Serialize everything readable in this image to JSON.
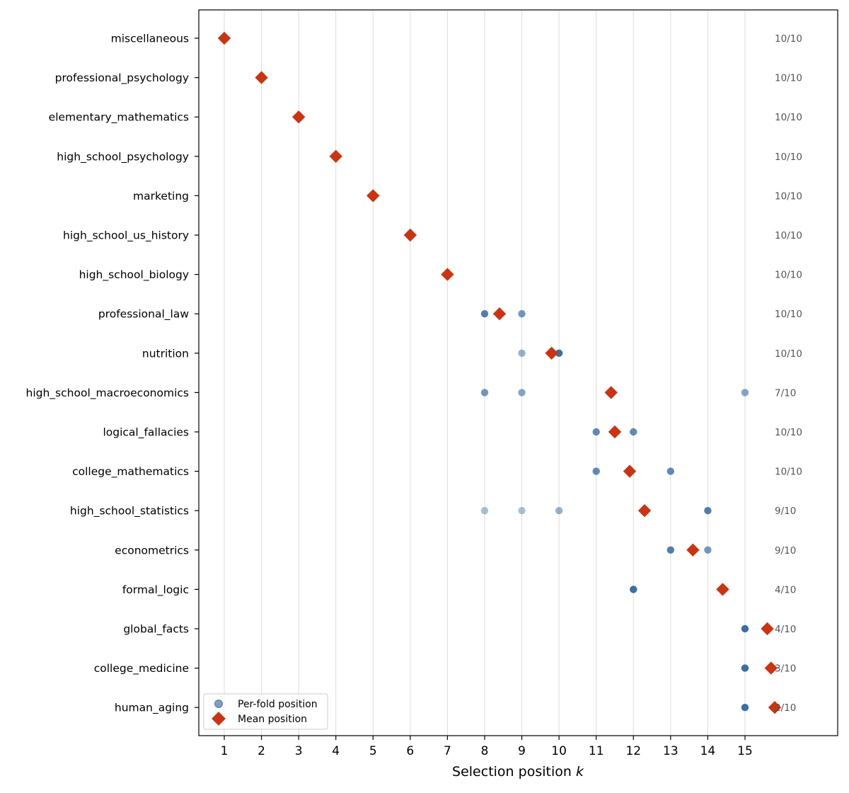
{
  "chart_data": {
    "type": "scatter",
    "xlabel": "Selection position",
    "xlabel_italic": "k",
    "xlim": [
      0.3,
      17.4
    ],
    "x_ticks": [
      1,
      2,
      3,
      4,
      5,
      6,
      7,
      8,
      9,
      10,
      11,
      12,
      13,
      14,
      15
    ],
    "grid": "vertical",
    "legend": {
      "placement": "bottom-left",
      "entries": [
        "Per-fold position",
        "Mean position"
      ]
    },
    "colors": {
      "per_fold": "#3a6ea5",
      "mean": "#cc3311",
      "grid": "#dddddd",
      "fraction_text": "#555555"
    },
    "categories": [
      "miscellaneous",
      "professional_psychology",
      "elementary_mathematics",
      "high_school_psychology",
      "marketing",
      "high_school_us_history",
      "high_school_biology",
      "professional_law",
      "nutrition",
      "high_school_macroeconomics",
      "logical_fallacies",
      "college_mathematics",
      "high_school_statistics",
      "econometrics",
      "formal_logic",
      "global_facts",
      "college_medicine",
      "human_aging"
    ],
    "fractions": [
      "10/10",
      "10/10",
      "10/10",
      "10/10",
      "10/10",
      "10/10",
      "10/10",
      "10/10",
      "10/10",
      "7/10",
      "10/10",
      "10/10",
      "9/10",
      "9/10",
      "4/10",
      "4/10",
      "3/10",
      "2/10"
    ],
    "mean_position": [
      1,
      2,
      3,
      4,
      5,
      6,
      7,
      8.4,
      9.8,
      11.4,
      11.5,
      11.9,
      12.3,
      13.6,
      14.4,
      15.6,
      15.7,
      15.8
    ],
    "per_fold_positions": [
      [
        {
          "x": 1,
          "share": 1.0
        }
      ],
      [
        {
          "x": 2,
          "share": 1.0
        }
      ],
      [
        {
          "x": 3,
          "share": 1.0
        }
      ],
      [
        {
          "x": 4,
          "share": 1.0
        }
      ],
      [
        {
          "x": 5,
          "share": 1.0
        }
      ],
      [
        {
          "x": 6,
          "share": 1.0
        }
      ],
      [
        {
          "x": 7,
          "share": 1.0
        }
      ],
      [
        {
          "x": 8,
          "share": 0.6
        },
        {
          "x": 9,
          "share": 0.4
        }
      ],
      [
        {
          "x": 9,
          "share": 0.2
        },
        {
          "x": 10,
          "share": 0.8
        }
      ],
      [
        {
          "x": 8,
          "share": 0.4
        },
        {
          "x": 9,
          "share": 0.3
        },
        {
          "x": 15,
          "share": 0.3
        }
      ],
      [
        {
          "x": 11,
          "share": 0.5
        },
        {
          "x": 12,
          "share": 0.5
        }
      ],
      [
        {
          "x": 11,
          "share": 0.5
        },
        {
          "x": 13,
          "share": 0.5
        }
      ],
      [
        {
          "x": 8,
          "share": 0.1
        },
        {
          "x": 9,
          "share": 0.1
        },
        {
          "x": 10,
          "share": 0.2
        },
        {
          "x": 14,
          "share": 0.6
        }
      ],
      [
        {
          "x": 13,
          "share": 0.6
        },
        {
          "x": 14,
          "share": 0.4
        }
      ],
      [
        {
          "x": 12,
          "share": 1.0
        }
      ],
      [
        {
          "x": 15,
          "share": 1.0
        }
      ],
      [
        {
          "x": 15,
          "share": 1.0
        }
      ],
      [
        {
          "x": 15,
          "share": 1.0
        }
      ]
    ]
  }
}
